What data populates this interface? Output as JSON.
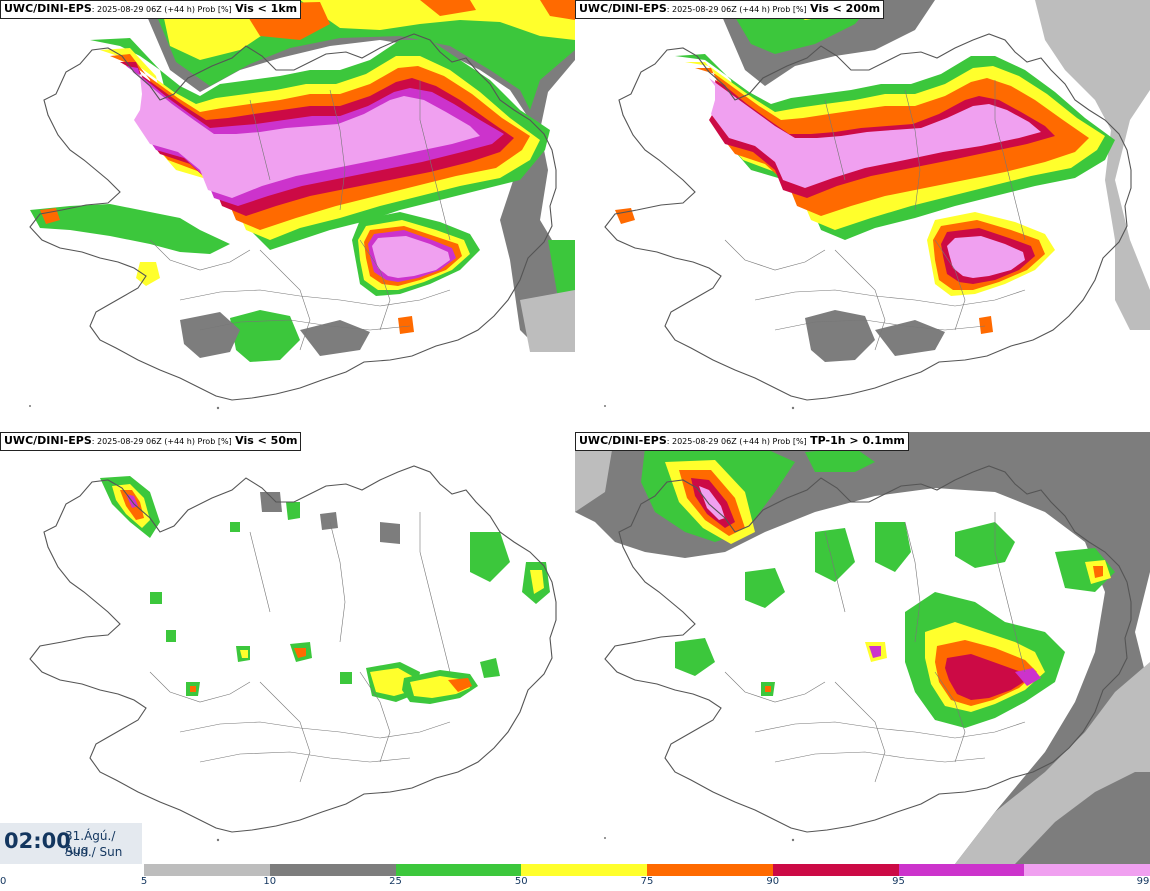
{
  "panels": [
    {
      "source": "UWC/DINI-EPS",
      "meta": ": 2025-08-29 06Z (+44 h) Prob [%]",
      "field": "Vis < 1km"
    },
    {
      "source": "UWC/DINI-EPS",
      "meta": ": 2025-08-29 06Z (+44 h) Prob [%]",
      "field": "Vis < 200m"
    },
    {
      "source": "UWC/DINI-EPS",
      "meta": ": 2025-08-29 06Z (+44 h) Prob [%]",
      "field": "Vis < 50m"
    },
    {
      "source": "UWC/DINI-EPS",
      "meta": ": 2025-08-29 06Z (+44 h) Prob [%]",
      "field": "TP-1h > 0.1mm"
    }
  ],
  "time": {
    "value": "02:00",
    "date_line1": "31.Ágú./ Aug",
    "date_line2": "Sun./ Sun"
  },
  "colorbar": {
    "ticks": [
      "0",
      "5",
      "10",
      "25",
      "50",
      "75",
      "90",
      "95",
      "99"
    ],
    "colors": [
      "#bdbdbd",
      "#7d7d7d",
      "#3cc73c",
      "#ffff2c",
      "#ff6a00",
      "#cc0a45",
      "#cc33cc",
      "#f0a0f0"
    ]
  },
  "palette": {
    "p5": "#bdbdbd",
    "p10": "#7d7d7d",
    "p25": "#3cc73c",
    "p50": "#ffff2c",
    "p75": "#ff6a00",
    "p90": "#cc0a45",
    "p95": "#cc33cc",
    "p99": "#f0a0f0",
    "outline": "#555555"
  }
}
